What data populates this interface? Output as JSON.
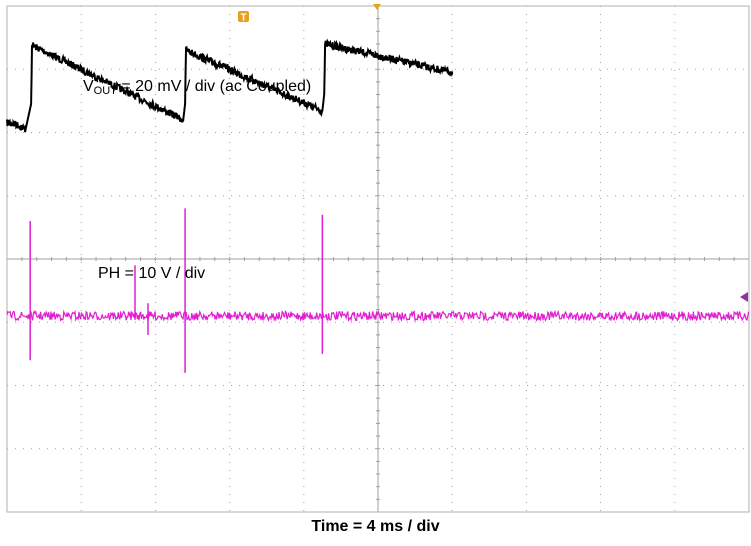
{
  "chart_data": {
    "type": "line",
    "title": "",
    "xlabel": "Time = 4 ms / div",
    "x_divisions": 10,
    "y_divisions": 8,
    "x_range_ms": [
      0,
      40
    ],
    "colors": {
      "background": "#ffffff",
      "grid": "#a0a0a0",
      "vout_trace": "#000000",
      "ph_trace": "#e020d0",
      "trigger_marker": "#e8a020",
      "ph_level_marker": "#9030a0"
    },
    "markers": {
      "trigger": "T"
    },
    "channels": [
      {
        "name": "VOUT",
        "label": {
          "main": "V",
          "sub": "OUT",
          "rest": " = 20 mV / div (ac Coupled)"
        },
        "scale": "20 mV / div",
        "coupling": "ac",
        "y_units": "div",
        "waveform": "sawtooth",
        "points": [
          [
            0.0,
            1.85
          ],
          [
            0.5,
            1.87
          ],
          [
            1.0,
            1.95
          ],
          [
            1.3,
            1.55
          ],
          [
            1.35,
            0.62
          ],
          [
            9.5,
            1.8
          ],
          [
            9.6,
            1.55
          ],
          [
            9.65,
            0.7
          ],
          [
            17.0,
            1.66
          ],
          [
            17.1,
            1.4
          ],
          [
            17.15,
            0.6
          ],
          [
            23.5,
            1.02
          ],
          [
            24.0,
            1.05
          ]
        ]
      },
      {
        "name": "PH",
        "label": "PH = 10 V / div",
        "scale": "10 V / div",
        "y_units": "div",
        "baseline_div": 4.9,
        "spikes": [
          {
            "t": 1.25,
            "top": 3.4,
            "bottom": 5.6
          },
          {
            "t": 6.9,
            "top": 4.1,
            "bottom": 4.9
          },
          {
            "t": 7.6,
            "top": 4.7,
            "bottom": 5.2
          },
          {
            "t": 9.6,
            "top": 3.2,
            "bottom": 5.8
          },
          {
            "t": 17.0,
            "top": 3.3,
            "bottom": 5.5
          }
        ]
      }
    ]
  }
}
